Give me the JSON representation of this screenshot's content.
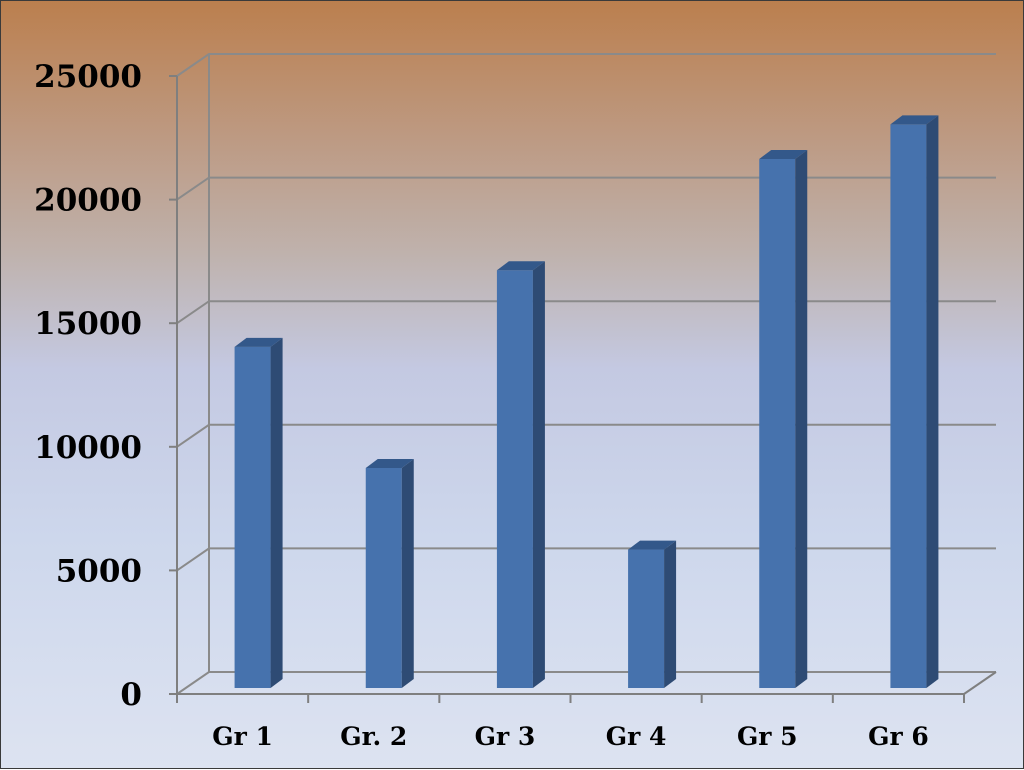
{
  "chart_data": {
    "type": "bar",
    "title": "",
    "xlabel": "",
    "ylabel": "",
    "categories": [
      "Gr 1",
      "Gr. 2",
      "Gr 3",
      "Gr 4",
      "Gr 5",
      "Gr 6"
    ],
    "values": [
      13800,
      8900,
      16900,
      5600,
      21400,
      22800
    ],
    "ylim": [
      0,
      25000
    ],
    "yticks": [
      0,
      5000,
      10000,
      15000,
      20000,
      25000
    ],
    "ytick_labels": [
      "0",
      "5000",
      "10000",
      "15000",
      "20000",
      "25000"
    ],
    "grid": true,
    "legend": "none",
    "style": "3d-column",
    "colors": {
      "bar_front": "#4672ad",
      "bar_side": "#2e4b74",
      "bar_top": "#33588a",
      "grid": "#8a8a8a",
      "axis": "#7f7f7f"
    }
  }
}
